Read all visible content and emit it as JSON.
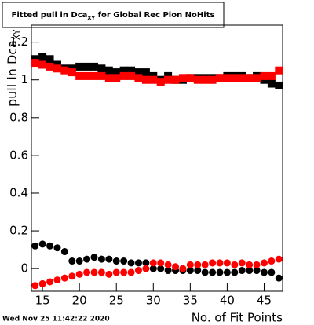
{
  "chart_data": {
    "type": "scatter",
    "title_parts": [
      "Fitted pull in Dca",
      "XY",
      " for Global Rec Pion NoHits"
    ],
    "ylabel_parts": [
      "pull in Dca",
      "XY"
    ],
    "xlabel": "No. of Fit Points",
    "footer": "Wed Nov 25 11:42:22 2020",
    "x": [
      14,
      15,
      16,
      17,
      18,
      19,
      20,
      21,
      22,
      23,
      24,
      25,
      26,
      27,
      28,
      29,
      30,
      31,
      32,
      33,
      34,
      35,
      36,
      37,
      38,
      39,
      40,
      41,
      42,
      43,
      44,
      45,
      46,
      47
    ],
    "series": [
      {
        "color": "#000000",
        "marker": "square",
        "values": [
          1.11,
          1.12,
          1.11,
          1.08,
          1.06,
          1.06,
          1.07,
          1.07,
          1.07,
          1.06,
          1.05,
          1.04,
          1.05,
          1.05,
          1.04,
          1.04,
          1.02,
          1.0,
          1.02,
          1.0,
          1.0,
          1.01,
          1.01,
          1.01,
          1.01,
          1.01,
          1.02,
          1.02,
          1.02,
          1.01,
          1.02,
          1.0,
          0.98,
          0.97
        ]
      },
      {
        "color": "#ff0000",
        "marker": "square",
        "values": [
          1.09,
          1.08,
          1.07,
          1.06,
          1.05,
          1.04,
          1.02,
          1.02,
          1.02,
          1.02,
          1.01,
          1.01,
          1.02,
          1.02,
          1.01,
          1.0,
          1.0,
          0.99,
          1.0,
          1.0,
          1.01,
          1.01,
          1.0,
          1.0,
          1.0,
          1.01,
          1.01,
          1.01,
          1.01,
          1.01,
          1.01,
          1.02,
          1.02,
          1.05
        ]
      },
      {
        "color": "#000000",
        "marker": "circle",
        "values": [
          0.12,
          0.13,
          0.12,
          0.11,
          0.09,
          0.04,
          0.04,
          0.05,
          0.06,
          0.05,
          0.05,
          0.04,
          0.04,
          0.03,
          0.03,
          0.03,
          0.0,
          0.0,
          -0.01,
          -0.01,
          -0.01,
          -0.01,
          -0.01,
          -0.02,
          -0.02,
          -0.02,
          -0.02,
          -0.02,
          -0.01,
          -0.01,
          -0.01,
          -0.02,
          -0.02,
          -0.05
        ]
      },
      {
        "color": "#ff0000",
        "marker": "circle",
        "values": [
          -0.09,
          -0.08,
          -0.07,
          -0.06,
          -0.05,
          -0.04,
          -0.03,
          -0.02,
          -0.02,
          -0.02,
          -0.03,
          -0.02,
          -0.02,
          -0.02,
          -0.01,
          0.0,
          0.03,
          0.03,
          0.02,
          0.01,
          0.0,
          0.02,
          0.02,
          0.02,
          0.03,
          0.03,
          0.03,
          0.02,
          0.03,
          0.02,
          0.02,
          0.03,
          0.04,
          0.05
        ]
      }
    ],
    "xlim": [
      13.5,
      47.5
    ],
    "xticks": [
      15,
      20,
      25,
      30,
      35,
      40,
      45
    ],
    "ylim": [
      -0.12,
      1.29
    ],
    "yticks": [
      0,
      0.2,
      0.4,
      0.6,
      0.8,
      1,
      1.2
    ],
    "grid": false
  }
}
